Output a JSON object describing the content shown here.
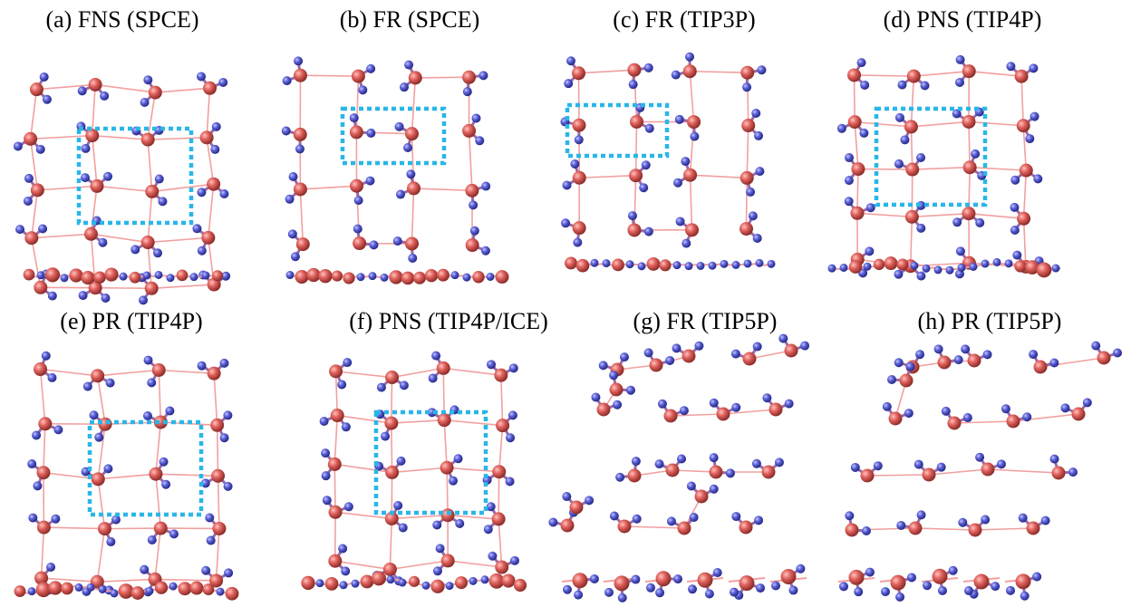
{
  "figure": {
    "panels": [
      {
        "id": "a",
        "label": "(a) FNS (SPCE)"
      },
      {
        "id": "b",
        "label": "(b) FR (SPCE)"
      },
      {
        "id": "c",
        "label": "(c) FR (TIP3P)"
      },
      {
        "id": "d",
        "label": "(d) PNS (TIP4P)"
      },
      {
        "id": "e",
        "label": "(e) PR (TIP4P)"
      },
      {
        "id": "f",
        "label": "(f) PNS (TIP4P/ICE)"
      },
      {
        "id": "g",
        "label": "(g) FR (TIP5P)"
      },
      {
        "id": "h",
        "label": "(h) PR  (TIP5P)"
      }
    ]
  },
  "colors": {
    "oxygen": "#d9534f",
    "hydrogen": "#4a4fc9",
    "bond": "#f2a0a0",
    "highlight_box": "#29b6e8",
    "label": "#000000"
  }
}
